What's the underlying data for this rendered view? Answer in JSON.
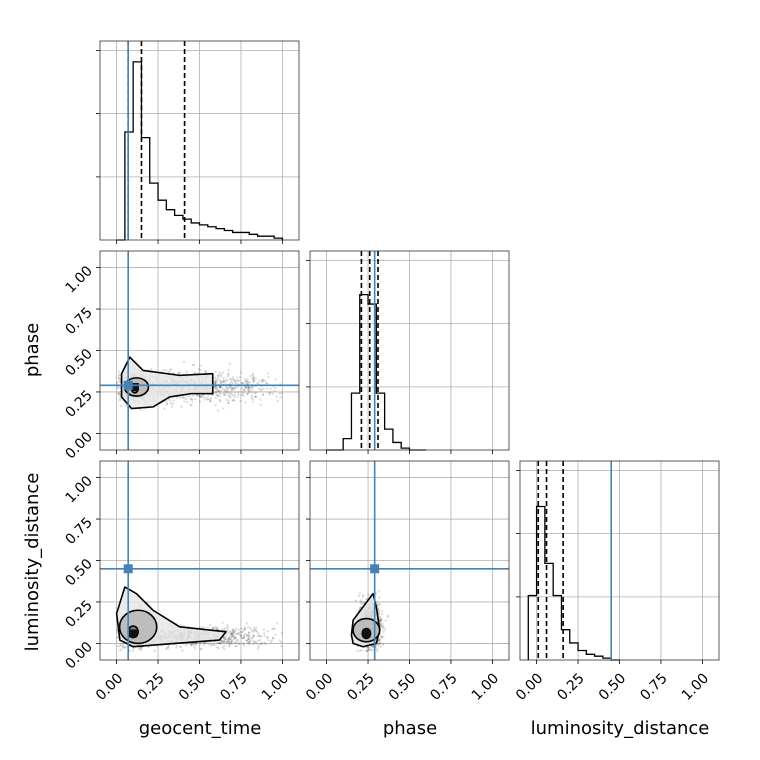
{
  "chart_data": {
    "type": "corner",
    "parameters": [
      "geocent_time",
      "phase",
      "luminosity_distance"
    ],
    "axis_range": [
      -0.1,
      1.1
    ],
    "tick_labels": [
      "0.00",
      "0.25",
      "0.50",
      "0.75",
      "1.00"
    ],
    "tick_values": [
      0.0,
      0.25,
      0.5,
      0.75,
      1.0
    ],
    "grid": true,
    "truth": {
      "geocent_time": 0.07,
      "phase": 0.29,
      "luminosity_distance": 0.45
    },
    "truth_color": "#4682b4",
    "histograms": {
      "geocent_time": {
        "edges": [
          0.0,
          0.05,
          0.1,
          0.15,
          0.2,
          0.25,
          0.3,
          0.35,
          0.4,
          0.45,
          0.5,
          0.55,
          0.6,
          0.65,
          0.7,
          0.75,
          0.8,
          0.85,
          0.9,
          0.95,
          1.0
        ],
        "counts": [
          0.0,
          0.57,
          0.94,
          0.54,
          0.3,
          0.21,
          0.16,
          0.13,
          0.11,
          0.09,
          0.08,
          0.07,
          0.06,
          0.05,
          0.04,
          0.04,
          0.03,
          0.02,
          0.02,
          0.01
        ],
        "quantiles": [
          0.07,
          0.15,
          0.41
        ]
      },
      "phase": {
        "edges": [
          0.0,
          0.05,
          0.1,
          0.15,
          0.2,
          0.25,
          0.3,
          0.35,
          0.4,
          0.45,
          0.5,
          0.55,
          0.6
        ],
        "counts": [
          0.0,
          0.0,
          0.06,
          0.3,
          0.82,
          0.77,
          0.3,
          0.11,
          0.04,
          0.01,
          0.0,
          0.0
        ],
        "quantiles": [
          0.21,
          0.26,
          0.31
        ]
      },
      "luminosity_distance": {
        "edges": [
          -0.05,
          0.0,
          0.05,
          0.1,
          0.15,
          0.2,
          0.25,
          0.3,
          0.35,
          0.4,
          0.45,
          0.5
        ],
        "counts": [
          0.34,
          0.81,
          0.51,
          0.34,
          0.16,
          0.09,
          0.05,
          0.03,
          0.02,
          0.01,
          0.0
        ],
        "quantiles": [
          0.01,
          0.06,
          0.16
        ]
      }
    },
    "pairs": [
      {
        "x": "geocent_time",
        "y": "phase"
      },
      {
        "x": "geocent_time",
        "y": "luminosity_distance"
      },
      {
        "x": "phase",
        "y": "luminosity_distance"
      }
    ]
  }
}
